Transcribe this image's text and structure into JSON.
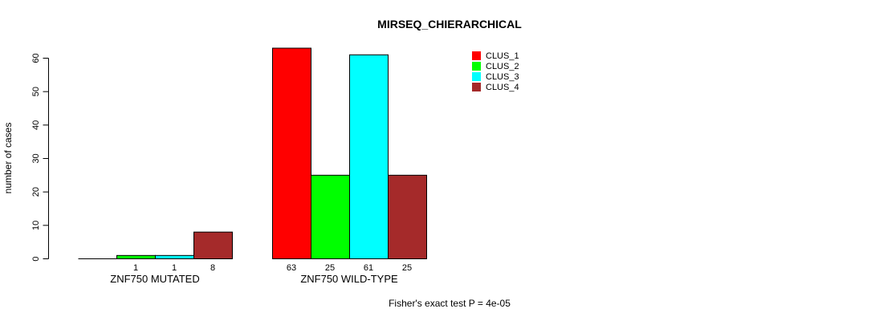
{
  "title": "MIRSEQ_CHIERARCHICAL",
  "footer": "Fisher's exact test P = 4e-05",
  "chart_data": {
    "type": "bar",
    "title": "MIRSEQ_CHIERARCHICAL",
    "xlabel": "",
    "ylabel": "number of cases",
    "ylim": [
      0,
      60
    ],
    "yticks": [
      0,
      10,
      20,
      30,
      40,
      50,
      60
    ],
    "grid": false,
    "legend_position": "top-right",
    "categories": [
      "ZNF750 MUTATED",
      "ZNF750 WILD-TYPE"
    ],
    "series": [
      {
        "name": "CLUS_1",
        "color": "#ff0000",
        "values": [
          0,
          63
        ]
      },
      {
        "name": "CLUS_2",
        "color": "#00ff00",
        "values": [
          1,
          25
        ]
      },
      {
        "name": "CLUS_3",
        "color": "#00ffff",
        "values": [
          1,
          61
        ]
      },
      {
        "name": "CLUS_4",
        "color": "#a52a2a",
        "values": [
          8,
          25
        ]
      }
    ],
    "bar_labels": [
      [
        null,
        "1",
        "1",
        "8"
      ],
      [
        "63",
        "25",
        "61",
        "25"
      ]
    ],
    "annotation": "Fisher's exact test P = 4e-05"
  }
}
